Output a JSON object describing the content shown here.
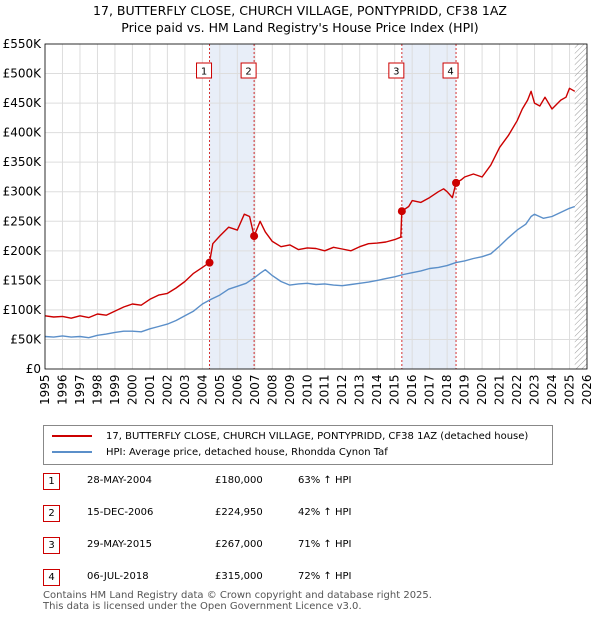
{
  "title_line1": "17, BUTTERFLY CLOSE, CHURCH VILLAGE, PONTYPRIDD, CF38 1AZ",
  "title_line2": "Price paid vs. HM Land Registry's House Price Index (HPI)",
  "colors": {
    "property": "#cc0000",
    "hpi": "#5b8fc9",
    "shade": "#e8eef8",
    "grid": "#dddddd",
    "hatch": "#999999"
  },
  "legend": {
    "property": "17, BUTTERFLY CLOSE, CHURCH VILLAGE, PONTYPRIDD, CF38 1AZ (detached house)",
    "hpi": "HPI: Average price, detached house, Rhondda Cynon Taf"
  },
  "sales": [
    {
      "num": "1",
      "date": "28-MAY-2004",
      "price": "£180,000",
      "hpi": "63% ↑ HPI"
    },
    {
      "num": "2",
      "date": "15-DEC-2006",
      "price": "£224,950",
      "hpi": "42% ↑ HPI"
    },
    {
      "num": "3",
      "date": "29-MAY-2015",
      "price": "£267,000",
      "hpi": "71% ↑ HPI"
    },
    {
      "num": "4",
      "date": "06-JUL-2018",
      "price": "£315,000",
      "hpi": "72% ↑ HPI"
    }
  ],
  "footer": {
    "line1": "Contains HM Land Registry data © Crown copyright and database right 2025.",
    "line2": "This data is licensed under the Open Government Licence v3.0."
  },
  "chart_data": {
    "type": "line",
    "title": "17, BUTTERFLY CLOSE, CHURCH VILLAGE, PONTYPRIDD, CF38 1AZ — Price paid vs. HM Land Registry's House Price Index (HPI)",
    "xlabel": "",
    "ylabel": "",
    "xlim": [
      1995,
      2026
    ],
    "ylim": [
      0,
      550000
    ],
    "y_ticks": [
      0,
      50000,
      100000,
      150000,
      200000,
      250000,
      300000,
      350000,
      400000,
      450000,
      500000,
      550000
    ],
    "y_tick_labels": [
      "£0",
      "£50K",
      "£100K",
      "£150K",
      "£200K",
      "£250K",
      "£300K",
      "£350K",
      "£400K",
      "£450K",
      "£500K",
      "£550K"
    ],
    "x_ticks": [
      1995,
      1996,
      1997,
      1998,
      1999,
      2000,
      2001,
      2002,
      2003,
      2004,
      2005,
      2006,
      2007,
      2008,
      2009,
      2010,
      2011,
      2012,
      2013,
      2014,
      2015,
      2016,
      2017,
      2018,
      2019,
      2020,
      2021,
      2022,
      2023,
      2024,
      2025,
      2026
    ],
    "x_tick_labels": [
      "1995",
      "1996",
      "1997",
      "1998",
      "1999",
      "2000",
      "2001",
      "2002",
      "2003",
      "2004",
      "2005",
      "2006",
      "2007",
      "2008",
      "2009",
      "2010",
      "2011",
      "2012",
      "2013",
      "2014",
      "2015",
      "2016",
      "2017",
      "2018",
      "2019",
      "2020",
      "2021",
      "2022",
      "2023",
      "2024",
      "2025",
      "2026"
    ],
    "shaded_periods": [
      [
        2004.41,
        2006.96
      ],
      [
        2015.41,
        2018.51
      ]
    ],
    "data_end": 2025.3,
    "grid": true,
    "series": [
      {
        "name": "17, BUTTERFLY CLOSE, CHURCH VILLAGE, PONTYPRIDD, CF38 1AZ (detached house)",
        "color": "#cc0000",
        "x": [
          1995,
          1995.5,
          1996,
          1996.5,
          1997,
          1997.5,
          1998,
          1998.5,
          1999,
          1999.5,
          2000,
          2000.5,
          2001,
          2001.5,
          2002,
          2002.5,
          2003,
          2003.5,
          2004,
          2004.41,
          2004.6,
          2005,
          2005.5,
          2006,
          2006.4,
          2006.7,
          2006.96,
          2007.3,
          2007.6,
          2008,
          2008.5,
          2009,
          2009.5,
          2010,
          2010.5,
          2011,
          2011.5,
          2012,
          2012.5,
          2013,
          2013.5,
          2014,
          2014.5,
          2015,
          2015.35,
          2015.41,
          2015.8,
          2016,
          2016.5,
          2017,
          2017.5,
          2017.8,
          2018,
          2018.3,
          2018.51,
          2018.8,
          2019,
          2019.5,
          2020,
          2020.5,
          2021,
          2021.5,
          2022,
          2022.3,
          2022.6,
          2022.8,
          2023,
          2023.3,
          2023.6,
          2024,
          2024.5,
          2024.8,
          2025,
          2025.3
        ],
        "y": [
          90000,
          88000,
          89000,
          86000,
          90000,
          87000,
          93000,
          91000,
          98000,
          105000,
          110000,
          108000,
          118000,
          125000,
          128000,
          137000,
          148000,
          162000,
          172000,
          180000,
          212000,
          225000,
          240000,
          235000,
          262000,
          258000,
          224950,
          250000,
          232000,
          216000,
          207000,
          210000,
          202000,
          205000,
          204000,
          200000,
          206000,
          203000,
          200000,
          207000,
          212000,
          213000,
          215000,
          219000,
          223000,
          267000,
          275000,
          285000,
          282000,
          290000,
          300000,
          305000,
          300000,
          290000,
          315000,
          320000,
          325000,
          330000,
          325000,
          345000,
          375000,
          395000,
          420000,
          440000,
          455000,
          470000,
          450000,
          445000,
          460000,
          440000,
          455000,
          460000,
          475000,
          470000
        ]
      },
      {
        "name": "HPI: Average price, detached house, Rhondda Cynon Taf",
        "color": "#5b8fc9",
        "x": [
          1995,
          1995.5,
          1996,
          1996.5,
          1997,
          1997.5,
          1998,
          1998.5,
          1999,
          1999.5,
          2000,
          2000.5,
          2001,
          2001.5,
          2002,
          2002.5,
          2003,
          2003.5,
          2004,
          2004.5,
          2005,
          2005.5,
          2006,
          2006.5,
          2007,
          2007.3,
          2007.6,
          2008,
          2008.5,
          2009,
          2009.5,
          2010,
          2010.5,
          2011,
          2011.5,
          2012,
          2012.5,
          2013,
          2013.5,
          2014,
          2014.5,
          2015,
          2015.5,
          2016,
          2016.5,
          2017,
          2017.5,
          2018,
          2018.5,
          2019,
          2019.5,
          2020,
          2020.5,
          2021,
          2021.5,
          2022,
          2022.5,
          2022.8,
          2023,
          2023.5,
          2024,
          2024.5,
          2025,
          2025.3
        ],
        "y": [
          55000,
          54000,
          56000,
          54000,
          55000,
          53000,
          57000,
          59000,
          62000,
          64000,
          64000,
          63000,
          68000,
          72000,
          76000,
          82000,
          90000,
          98000,
          110000,
          118000,
          125000,
          135000,
          140000,
          145000,
          155000,
          162000,
          168000,
          158000,
          148000,
          142000,
          144000,
          145000,
          143000,
          144000,
          142000,
          141000,
          143000,
          145000,
          147000,
          150000,
          153000,
          156000,
          160000,
          163000,
          166000,
          170000,
          172000,
          175000,
          180000,
          183000,
          187000,
          190000,
          195000,
          208000,
          222000,
          235000,
          245000,
          258000,
          262000,
          255000,
          258000,
          265000,
          272000,
          275000
        ]
      }
    ],
    "markers": [
      {
        "label": "1",
        "x": 2004.41,
        "y": 180000
      },
      {
        "label": "2",
        "x": 2006.96,
        "y": 224950
      },
      {
        "label": "3",
        "x": 2015.41,
        "y": 267000
      },
      {
        "label": "4",
        "x": 2018.51,
        "y": 315000
      }
    ]
  }
}
